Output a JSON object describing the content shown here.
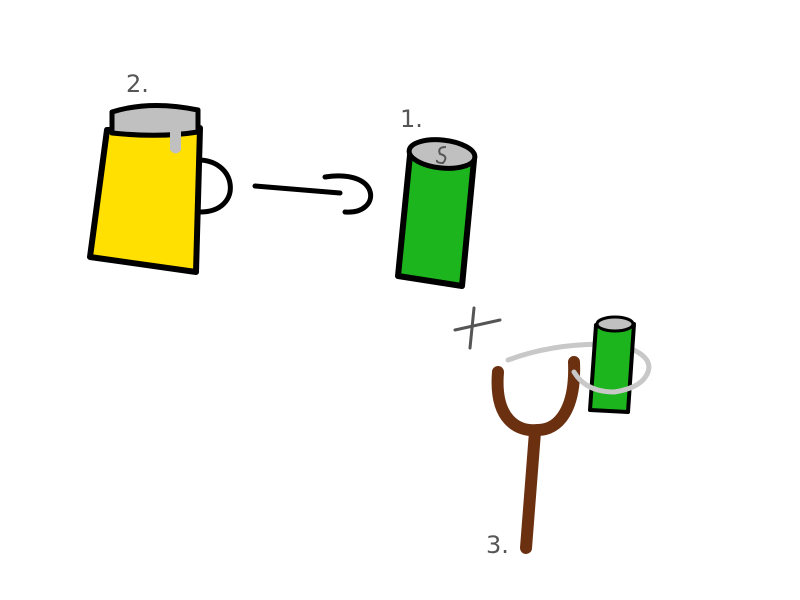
{
  "labels": {
    "beer_mug": "2.",
    "soda_can": "1.",
    "slingshot": "3."
  },
  "operators": {
    "plus": "+"
  },
  "colors": {
    "beer": "#ffe000",
    "foam": "#c0c0c0",
    "can": "#1db51d",
    "slingshot_wood": "#6b3010",
    "band": "#c8c8c8",
    "outline": "#000000"
  },
  "icons": {
    "beer_mug": "beer-mug-icon",
    "soda_can": "soda-can-icon",
    "arrow": "arrow-right-icon",
    "slingshot": "slingshot-icon",
    "small_can": "small-can-icon"
  }
}
